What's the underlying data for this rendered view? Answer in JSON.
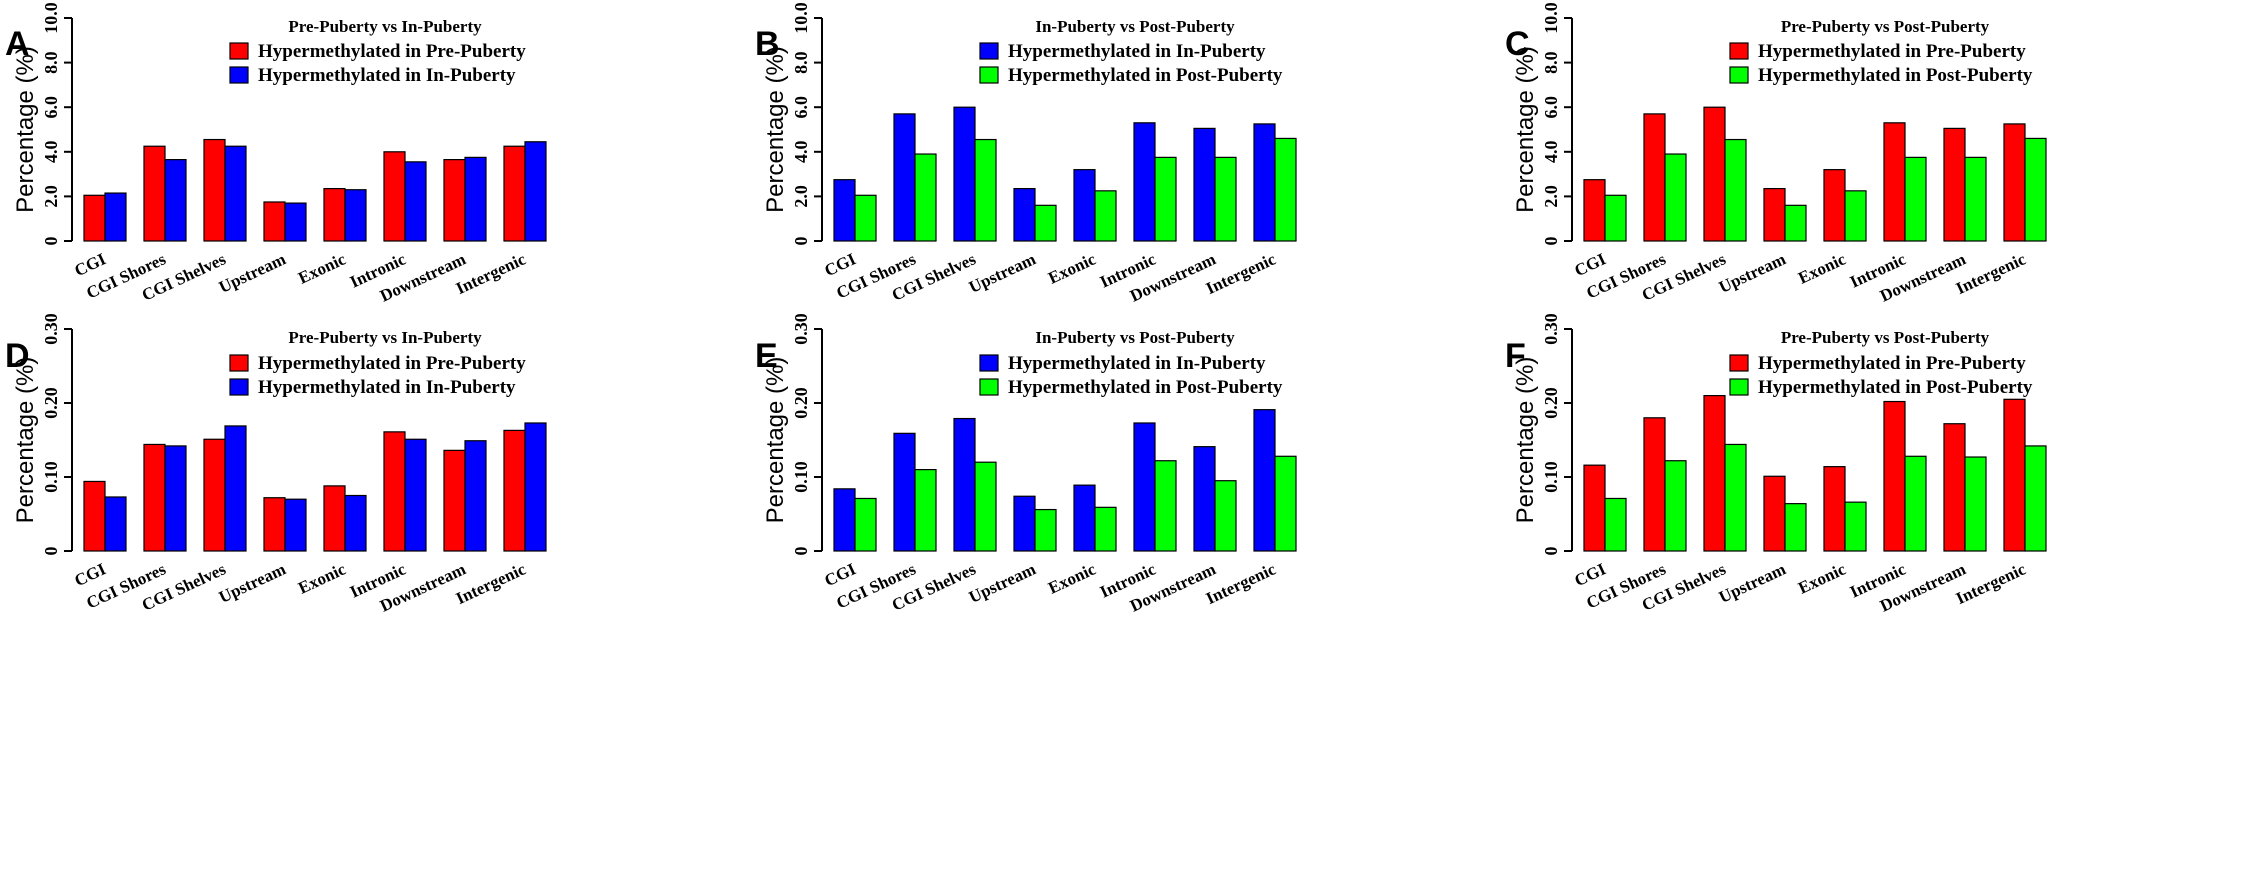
{
  "colors": {
    "red": "#ff0000",
    "blue": "#0000ff",
    "green": "#00ff00"
  },
  "chart_data": [
    {
      "panel": "A",
      "type": "bar",
      "title": "Pre-Puberty vs In-Puberty",
      "xlabel": "",
      "ylabel": "Percentage (%)",
      "ylim": [
        0,
        10
      ],
      "yticks": [
        "0",
        "2.0",
        "4.0",
        "6.0",
        "8.0",
        "10.0"
      ],
      "ytick_values": [
        0,
        2,
        4,
        6,
        8,
        10
      ],
      "categories": [
        "CGI",
        "CGI Shores",
        "CGI Shelves",
        "Upstream",
        "Exonic",
        "Intronic",
        "Downstream",
        "Intergenic"
      ],
      "series": [
        {
          "name": "Hypermethylated in Pre-Puberty",
          "color": "#ff0000",
          "values": [
            2.05,
            4.25,
            4.55,
            1.75,
            2.35,
            4.0,
            3.65,
            4.25
          ]
        },
        {
          "name": "Hypermethylated in In-Puberty",
          "color": "#0000ff",
          "values": [
            2.15,
            3.65,
            4.25,
            1.7,
            2.3,
            3.55,
            3.75,
            4.45
          ]
        }
      ]
    },
    {
      "panel": "B",
      "type": "bar",
      "title": "In-Puberty vs Post-Puberty",
      "xlabel": "",
      "ylabel": "Percentage (%)",
      "ylim": [
        0,
        10
      ],
      "yticks": [
        "0",
        "2.0",
        "4.0",
        "6.0",
        "8.0",
        "10.0"
      ],
      "ytick_values": [
        0,
        2,
        4,
        6,
        8,
        10
      ],
      "categories": [
        "CGI",
        "CGI Shores",
        "CGI Shelves",
        "Upstream",
        "Exonic",
        "Intronic",
        "Downstream",
        "Intergenic"
      ],
      "series": [
        {
          "name": "Hypermethylated in In-Puberty",
          "color": "#0000ff",
          "values": [
            2.75,
            5.7,
            6.0,
            2.35,
            3.2,
            5.3,
            5.05,
            5.25
          ]
        },
        {
          "name": "Hypermethylated in Post-Puberty",
          "color": "#00ff00",
          "values": [
            2.05,
            3.9,
            4.55,
            1.6,
            2.25,
            3.75,
            3.75,
            4.6
          ]
        }
      ]
    },
    {
      "panel": "C",
      "type": "bar",
      "title": "Pre-Puberty vs Post-Puberty",
      "xlabel": "",
      "ylabel": "Percentage (%)",
      "ylim": [
        0,
        10
      ],
      "yticks": [
        "0",
        "2.0",
        "4.0",
        "6.0",
        "8.0",
        "10.0"
      ],
      "ytick_values": [
        0,
        2,
        4,
        6,
        8,
        10
      ],
      "categories": [
        "CGI",
        "CGI Shores",
        "CGI Shelves",
        "Upstream",
        "Exonic",
        "Intronic",
        "Downstream",
        "Intergenic"
      ],
      "series": [
        {
          "name": "Hypermethylated in Pre-Puberty",
          "color": "#ff0000",
          "values": [
            2.75,
            5.7,
            6.0,
            2.35,
            3.2,
            5.3,
            5.05,
            5.25
          ]
        },
        {
          "name": "Hypermethylated in Post-Puberty",
          "color": "#00ff00",
          "values": [
            2.05,
            3.9,
            4.55,
            1.6,
            2.25,
            3.75,
            3.75,
            4.6
          ]
        }
      ]
    },
    {
      "panel": "D",
      "type": "bar",
      "title": "Pre-Puberty vs In-Puberty",
      "xlabel": "",
      "ylabel": "Percentage (%)",
      "ylim": [
        0,
        0.3
      ],
      "yticks": [
        "0",
        "0.10",
        "0.20",
        "0.30"
      ],
      "ytick_values": [
        0,
        0.1,
        0.2,
        0.3
      ],
      "categories": [
        "CGI",
        "CGI Shores",
        "CGI Shelves",
        "Upstream",
        "Exonic",
        "Intronic",
        "Downstream",
        "Intergenic"
      ],
      "series": [
        {
          "name": "Hypermethylated in Pre-Puberty",
          "color": "#ff0000",
          "values": [
            0.094,
            0.144,
            0.151,
            0.072,
            0.088,
            0.161,
            0.136,
            0.163
          ]
        },
        {
          "name": "Hypermethylated in In-Puberty",
          "color": "#0000ff",
          "values": [
            0.073,
            0.142,
            0.169,
            0.07,
            0.075,
            0.151,
            0.149,
            0.173
          ]
        }
      ]
    },
    {
      "panel": "E",
      "type": "bar",
      "title": "In-Puberty vs Post-Puberty",
      "xlabel": "",
      "ylabel": "Percentage (%)",
      "ylim": [
        0,
        0.3
      ],
      "yticks": [
        "0",
        "0.10",
        "0.20",
        "0.30"
      ],
      "ytick_values": [
        0,
        0.1,
        0.2,
        0.3
      ],
      "categories": [
        "CGI",
        "CGI Shores",
        "CGI Shelves",
        "Upstream",
        "Exonic",
        "Intronic",
        "Downstream",
        "Intergenic"
      ],
      "series": [
        {
          "name": "Hypermethylated in In-Puberty",
          "color": "#0000ff",
          "values": [
            0.084,
            0.159,
            0.179,
            0.074,
            0.089,
            0.173,
            0.141,
            0.191
          ]
        },
        {
          "name": "Hypermethylated in Post-Puberty",
          "color": "#00ff00",
          "values": [
            0.071,
            0.11,
            0.12,
            0.056,
            0.059,
            0.122,
            0.095,
            0.128
          ]
        }
      ]
    },
    {
      "panel": "F",
      "type": "bar",
      "title": "Pre-Puberty vs Post-Puberty",
      "xlabel": "",
      "ylabel": "Percentage (%)",
      "ylim": [
        0,
        0.3
      ],
      "yticks": [
        "0",
        "0.10",
        "0.20",
        "0.30"
      ],
      "ytick_values": [
        0,
        0.1,
        0.2,
        0.3
      ],
      "categories": [
        "CGI",
        "CGI Shores",
        "CGI Shelves",
        "Upstream",
        "Exonic",
        "Intronic",
        "Downstream",
        "Intergenic"
      ],
      "series": [
        {
          "name": "Hypermethylated in Pre-Puberty",
          "color": "#ff0000",
          "values": [
            0.116,
            0.18,
            0.21,
            0.101,
            0.114,
            0.202,
            0.172,
            0.205
          ]
        },
        {
          "name": "Hypermethylated in Post-Puberty",
          "color": "#00ff00",
          "values": [
            0.071,
            0.122,
            0.144,
            0.064,
            0.066,
            0.128,
            0.127,
            0.142
          ]
        }
      ]
    }
  ]
}
